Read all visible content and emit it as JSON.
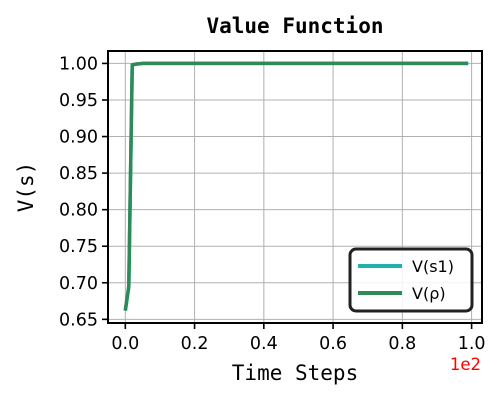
{
  "chart_data": {
    "type": "line",
    "title": "Value Function",
    "xlabel": "Time Steps",
    "ylabel": "V(s)",
    "x_offset_label": "1e2",
    "x_offset_color": "#ff0000",
    "xlim": [
      -0.05,
      1.03
    ],
    "ylim": [
      0.645,
      1.017
    ],
    "xticks": [
      0.0,
      0.2,
      0.4,
      0.6,
      0.8,
      1.0
    ],
    "xtick_labels": [
      "0.0",
      "0.2",
      "0.4",
      "0.6",
      "0.8",
      "1.0"
    ],
    "yticks": [
      0.65,
      0.7,
      0.75,
      0.8,
      0.85,
      0.9,
      0.95,
      1.0
    ],
    "ytick_labels": [
      "0.65",
      "0.70",
      "0.75",
      "0.80",
      "0.85",
      "0.90",
      "0.95",
      "1.00"
    ],
    "grid": true,
    "legend_position": "lower-right",
    "series": [
      {
        "name": "V(s1)",
        "color": "#20b2aa",
        "x": [
          0.0,
          0.01,
          0.02,
          0.03,
          0.05,
          0.1,
          0.2,
          0.3,
          0.4,
          0.5,
          0.6,
          0.7,
          0.8,
          0.9,
          0.99
        ],
        "y": [
          0.662,
          0.695,
          0.998,
          0.999,
          1.0,
          1.0,
          1.0,
          1.0,
          1.0,
          1.0,
          1.0,
          1.0,
          1.0,
          1.0,
          1.0
        ]
      },
      {
        "name": "V(ρ)",
        "color": "#2e8b57",
        "x": [
          0.0,
          0.01,
          0.02,
          0.03,
          0.05,
          0.1,
          0.2,
          0.3,
          0.4,
          0.5,
          0.6,
          0.7,
          0.8,
          0.9,
          0.99
        ],
        "y": [
          0.662,
          0.695,
          0.998,
          0.999,
          1.0,
          1.0,
          1.0,
          1.0,
          1.0,
          1.0,
          1.0,
          1.0,
          1.0,
          1.0,
          1.0
        ]
      }
    ]
  }
}
